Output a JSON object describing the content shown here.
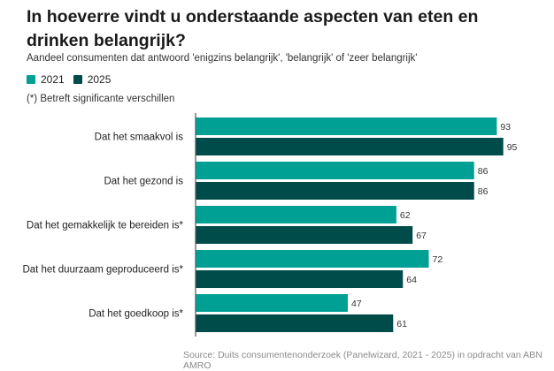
{
  "colors": {
    "2021": "#00A194",
    "2025": "#004C4B"
  },
  "chart_data": {
    "type": "bar",
    "orientation": "horizontal",
    "title": "In hoeverre vindt u onderstaande aspecten van eten en drinken belangrijk?",
    "subtitle": "Aandeel consumenten dat antwoord 'enigzins belangrijk', 'belangrijk' of 'zeer belangrijk'",
    "note": "(*) Betreft significante verschillen",
    "categories": [
      "Dat het smaakvol is",
      "Dat het gezond is",
      "Dat het gemakkelijk te bereiden is*",
      "Dat het duurzaam geproduceerd is*",
      "Dat het goedkoop is*"
    ],
    "series": [
      {
        "name": "2021",
        "values": [
          93,
          86,
          62,
          72,
          47
        ]
      },
      {
        "name": "2025",
        "values": [
          95,
          86,
          67,
          64,
          61
        ]
      }
    ],
    "xlim": [
      0,
      100
    ],
    "legend": "top-left",
    "source": "Source:  Duits consumentenonderzoek (Panelwizard, 2021 - 2025) in opdracht van ABN AMRO"
  }
}
